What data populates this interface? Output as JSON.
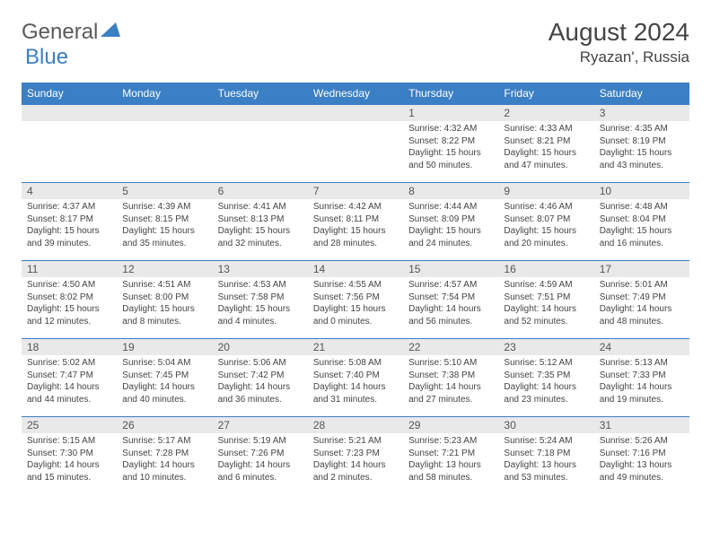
{
  "logo": {
    "part1": "General",
    "part2": "Blue"
  },
  "title": "August 2024",
  "location": "Ryazan', Russia",
  "header_bg": "#3b7fc4",
  "weekdays": [
    "Sunday",
    "Monday",
    "Tuesday",
    "Wednesday",
    "Thursday",
    "Friday",
    "Saturday"
  ],
  "weeks": [
    [
      null,
      null,
      null,
      null,
      {
        "n": "1",
        "sr": "4:32 AM",
        "ss": "8:22 PM",
        "dl": "15 hours and 50 minutes."
      },
      {
        "n": "2",
        "sr": "4:33 AM",
        "ss": "8:21 PM",
        "dl": "15 hours and 47 minutes."
      },
      {
        "n": "3",
        "sr": "4:35 AM",
        "ss": "8:19 PM",
        "dl": "15 hours and 43 minutes."
      }
    ],
    [
      {
        "n": "4",
        "sr": "4:37 AM",
        "ss": "8:17 PM",
        "dl": "15 hours and 39 minutes."
      },
      {
        "n": "5",
        "sr": "4:39 AM",
        "ss": "8:15 PM",
        "dl": "15 hours and 35 minutes."
      },
      {
        "n": "6",
        "sr": "4:41 AM",
        "ss": "8:13 PM",
        "dl": "15 hours and 32 minutes."
      },
      {
        "n": "7",
        "sr": "4:42 AM",
        "ss": "8:11 PM",
        "dl": "15 hours and 28 minutes."
      },
      {
        "n": "8",
        "sr": "4:44 AM",
        "ss": "8:09 PM",
        "dl": "15 hours and 24 minutes."
      },
      {
        "n": "9",
        "sr": "4:46 AM",
        "ss": "8:07 PM",
        "dl": "15 hours and 20 minutes."
      },
      {
        "n": "10",
        "sr": "4:48 AM",
        "ss": "8:04 PM",
        "dl": "15 hours and 16 minutes."
      }
    ],
    [
      {
        "n": "11",
        "sr": "4:50 AM",
        "ss": "8:02 PM",
        "dl": "15 hours and 12 minutes."
      },
      {
        "n": "12",
        "sr": "4:51 AM",
        "ss": "8:00 PM",
        "dl": "15 hours and 8 minutes."
      },
      {
        "n": "13",
        "sr": "4:53 AM",
        "ss": "7:58 PM",
        "dl": "15 hours and 4 minutes."
      },
      {
        "n": "14",
        "sr": "4:55 AM",
        "ss": "7:56 PM",
        "dl": "15 hours and 0 minutes."
      },
      {
        "n": "15",
        "sr": "4:57 AM",
        "ss": "7:54 PM",
        "dl": "14 hours and 56 minutes."
      },
      {
        "n": "16",
        "sr": "4:59 AM",
        "ss": "7:51 PM",
        "dl": "14 hours and 52 minutes."
      },
      {
        "n": "17",
        "sr": "5:01 AM",
        "ss": "7:49 PM",
        "dl": "14 hours and 48 minutes."
      }
    ],
    [
      {
        "n": "18",
        "sr": "5:02 AM",
        "ss": "7:47 PM",
        "dl": "14 hours and 44 minutes."
      },
      {
        "n": "19",
        "sr": "5:04 AM",
        "ss": "7:45 PM",
        "dl": "14 hours and 40 minutes."
      },
      {
        "n": "20",
        "sr": "5:06 AM",
        "ss": "7:42 PM",
        "dl": "14 hours and 36 minutes."
      },
      {
        "n": "21",
        "sr": "5:08 AM",
        "ss": "7:40 PM",
        "dl": "14 hours and 31 minutes."
      },
      {
        "n": "22",
        "sr": "5:10 AM",
        "ss": "7:38 PM",
        "dl": "14 hours and 27 minutes."
      },
      {
        "n": "23",
        "sr": "5:12 AM",
        "ss": "7:35 PM",
        "dl": "14 hours and 23 minutes."
      },
      {
        "n": "24",
        "sr": "5:13 AM",
        "ss": "7:33 PM",
        "dl": "14 hours and 19 minutes."
      }
    ],
    [
      {
        "n": "25",
        "sr": "5:15 AM",
        "ss": "7:30 PM",
        "dl": "14 hours and 15 minutes."
      },
      {
        "n": "26",
        "sr": "5:17 AM",
        "ss": "7:28 PM",
        "dl": "14 hours and 10 minutes."
      },
      {
        "n": "27",
        "sr": "5:19 AM",
        "ss": "7:26 PM",
        "dl": "14 hours and 6 minutes."
      },
      {
        "n": "28",
        "sr": "5:21 AM",
        "ss": "7:23 PM",
        "dl": "14 hours and 2 minutes."
      },
      {
        "n": "29",
        "sr": "5:23 AM",
        "ss": "7:21 PM",
        "dl": "13 hours and 58 minutes."
      },
      {
        "n": "30",
        "sr": "5:24 AM",
        "ss": "7:18 PM",
        "dl": "13 hours and 53 minutes."
      },
      {
        "n": "31",
        "sr": "5:26 AM",
        "ss": "7:16 PM",
        "dl": "13 hours and 49 minutes."
      }
    ]
  ],
  "labels": {
    "sunrise": "Sunrise: ",
    "sunset": "Sunset: ",
    "daylight": "Daylight: "
  }
}
